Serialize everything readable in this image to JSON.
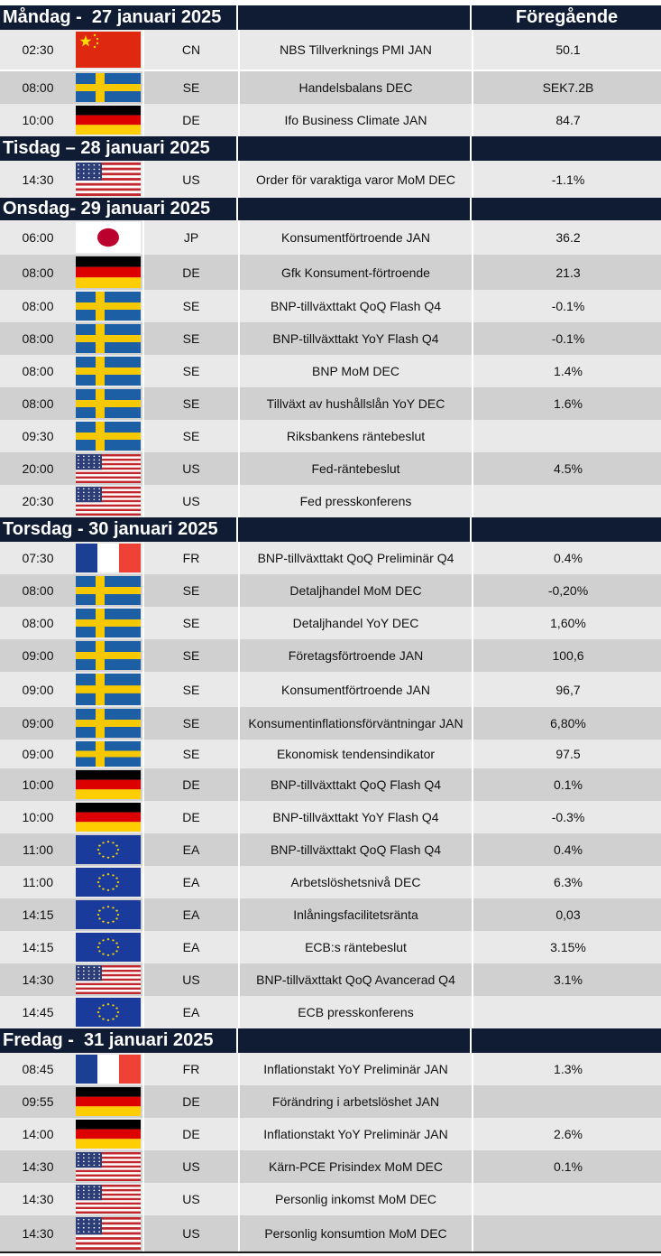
{
  "header_prev_label": "Föregående",
  "sections": [
    {
      "label": "Måndag -  27 januari 2025",
      "events": [
        {
          "time": "02:30",
          "country": "CN",
          "event": "NBS Tillverknings PMI JAN",
          "previous": "50.1",
          "flag": "china-flag"
        },
        {
          "time": "08:00",
          "country": "SE",
          "event": "Handelsbalans DEC",
          "previous": "SEK7.2B",
          "flag": "sweden-flag"
        },
        {
          "time": "10:00",
          "country": "DE",
          "event": "Ifo Business Climate JAN",
          "previous": "84.7",
          "flag": "germany-flag"
        }
      ]
    },
    {
      "label": "Tisdag – 28 januari 2025",
      "events": [
        {
          "time": "14:30",
          "country": "US",
          "event": "Order för varaktiga varor MoM DEC",
          "previous": "-1.1%",
          "flag": "usa-flag"
        }
      ]
    },
    {
      "label": "Onsdag- 29 januari 2025",
      "events": [
        {
          "time": "06:00",
          "country": "JP",
          "event": "Konsumentförtroende JAN",
          "previous": "36.2",
          "flag": "japan-flag"
        },
        {
          "time": "08:00",
          "country": "DE",
          "event": "Gfk Konsument-förtroende",
          "previous": "21.3",
          "flag": "germany-flag"
        },
        {
          "time": "08:00",
          "country": "SE",
          "event": "BNP-tillväxttakt QoQ Flash Q4",
          "previous": "-0.1%",
          "flag": "sweden-flag"
        },
        {
          "time": "08:00",
          "country": "SE",
          "event": "BNP-tillväxttakt YoY Flash Q4",
          "previous": "-0.1%",
          "flag": "sweden-flag"
        },
        {
          "time": "08:00",
          "country": "SE",
          "event": "BNP MoM DEC",
          "previous": "1.4%",
          "flag": "sweden-flag"
        },
        {
          "time": "08:00",
          "country": "SE",
          "event": "Tillväxt av hushållslån YoY DEC",
          "previous": "1.6%",
          "flag": "sweden-flag"
        },
        {
          "time": "09:30",
          "country": "SE",
          "event": "Riksbankens räntebeslut",
          "previous": "",
          "flag": "sweden-flag"
        },
        {
          "time": "20:00",
          "country": "US",
          "event": "Fed-räntebeslut",
          "previous": "4.5%",
          "flag": "usa-flag"
        },
        {
          "time": "20:30",
          "country": "US",
          "event": "Fed presskonferens",
          "previous": "",
          "flag": "usa-flag"
        }
      ]
    },
    {
      "label": "Torsdag - 30 januari 2025",
      "events": [
        {
          "time": "07:30",
          "country": "FR",
          "event": "BNP-tillväxttakt QoQ Preliminär Q4",
          "previous": "0.4%",
          "flag": "france-flag"
        },
        {
          "time": "08:00",
          "country": "SE",
          "event": "Detaljhandel MoM DEC",
          "previous": "-0,20%",
          "flag": "sweden-flag"
        },
        {
          "time": "08:00",
          "country": "SE",
          "event": "Detaljhandel YoY DEC",
          "previous": "1,60%",
          "flag": "sweden-flag"
        },
        {
          "time": "09:00",
          "country": "SE",
          "event": "Företagsförtroende JAN",
          "previous": "100,6",
          "flag": "sweden-flag"
        },
        {
          "time": "09:00",
          "country": "SE",
          "event": "Konsumentförtroende JAN",
          "previous": "96,7",
          "flag": "sweden-flag"
        },
        {
          "time": "09:00",
          "country": "SE",
          "event": "Konsumentinflationsförväntningar JAN",
          "previous": "6,80%",
          "flag": "sweden-flag"
        },
        {
          "time": "09:00",
          "country": "SE",
          "event": "Ekonomisk tendensindikator",
          "previous": "97.5",
          "flag": "sweden-flag"
        },
        {
          "time": "10:00",
          "country": "DE",
          "event": "BNP-tillväxttakt QoQ Flash Q4",
          "previous": "0.1%",
          "flag": "germany-flag"
        },
        {
          "time": "10:00",
          "country": "DE",
          "event": "BNP-tillväxttakt YoY Flash Q4",
          "previous": "-0.3%",
          "flag": "germany-flag"
        },
        {
          "time": "11:00",
          "country": "EA",
          "event": "BNP-tillväxttakt QoQ Flash Q4",
          "previous": "0.4%",
          "flag": "eu-flag"
        },
        {
          "time": "11:00",
          "country": "EA",
          "event": "Arbetslöshetsnivå DEC",
          "previous": "6.3%",
          "flag": "eu-flag"
        },
        {
          "time": "14:15",
          "country": "EA",
          "event": "Inlåningsfacilitetsränta",
          "previous": "0,03",
          "flag": "eu-flag"
        },
        {
          "time": "14:15",
          "country": "EA",
          "event": "ECB:s räntebeslut",
          "previous": "3.15%",
          "flag": "eu-flag"
        },
        {
          "time": "14:30",
          "country": "US",
          "event": "BNP-tillväxttakt QoQ Avancerad Q4",
          "previous": "3.1%",
          "flag": "usa-flag"
        },
        {
          "time": "14:45",
          "country": "EA",
          "event": "ECB presskonferens",
          "previous": "",
          "flag": "eu-flag"
        }
      ]
    },
    {
      "label": "Fredag -  31 januari 2025",
      "events": [
        {
          "time": "08:45",
          "country": "FR",
          "event": "Inflationstakt YoY Preliminär JAN",
          "previous": "1.3%",
          "flag": "france-flag"
        },
        {
          "time": "09:55",
          "country": "DE",
          "event": "Förändring i arbetslöshet JAN",
          "previous": "",
          "flag": "germany-flag"
        },
        {
          "time": "14:00",
          "country": "DE",
          "event": "Inflationstakt YoY Preliminär JAN",
          "previous": "2.6%",
          "flag": "germany-flag"
        },
        {
          "time": "14:30",
          "country": "US",
          "event": "Kärn-PCE Prisindex MoM DEC",
          "previous": "0.1%",
          "flag": "usa-flag"
        },
        {
          "time": "14:30",
          "country": "US",
          "event": "Personlig inkomst MoM DEC",
          "previous": "",
          "flag": "usa-flag"
        },
        {
          "time": "14:30",
          "country": "US",
          "event": "Personlig konsumtion MoM DEC",
          "previous": "",
          "flag": "usa-flag"
        }
      ]
    }
  ]
}
